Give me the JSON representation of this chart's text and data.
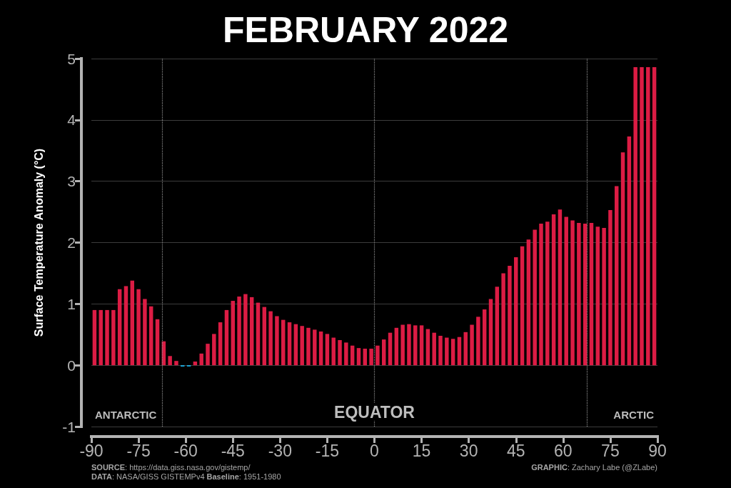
{
  "chart_data": {
    "type": "bar",
    "title": "FEBRUARY 2022",
    "ylabel": "Surface Temperature Anomaly (°C)",
    "x": [
      -89,
      -87,
      -85,
      -83,
      -81,
      -79,
      -77,
      -75,
      -73,
      -71,
      -69,
      -67,
      -65,
      -63,
      -61,
      -59,
      -57,
      -55,
      -53,
      -51,
      -49,
      -47,
      -45,
      -43,
      -41,
      -39,
      -37,
      -35,
      -33,
      -31,
      -29,
      -27,
      -25,
      -23,
      -21,
      -19,
      -17,
      -15,
      -13,
      -11,
      -9,
      -7,
      -5,
      -3,
      -1,
      1,
      3,
      5,
      7,
      9,
      11,
      13,
      15,
      17,
      19,
      21,
      23,
      25,
      27,
      29,
      31,
      33,
      35,
      37,
      39,
      41,
      43,
      45,
      47,
      49,
      51,
      53,
      55,
      57,
      59,
      61,
      63,
      65,
      67,
      69,
      71,
      73,
      75,
      77,
      79,
      81,
      83,
      85,
      87,
      89
    ],
    "values": [
      0.9,
      0.9,
      0.9,
      0.9,
      1.24,
      1.29,
      1.38,
      1.24,
      1.08,
      0.96,
      0.75,
      0.39,
      0.15,
      0.07,
      -0.02,
      -0.02,
      0.06,
      0.19,
      0.35,
      0.51,
      0.7,
      0.9,
      1.05,
      1.12,
      1.16,
      1.11,
      1.02,
      0.95,
      0.88,
      0.8,
      0.74,
      0.7,
      0.67,
      0.64,
      0.61,
      0.58,
      0.55,
      0.51,
      0.45,
      0.41,
      0.37,
      0.32,
      0.28,
      0.27,
      0.27,
      0.32,
      0.42,
      0.53,
      0.61,
      0.66,
      0.67,
      0.65,
      0.65,
      0.59,
      0.53,
      0.48,
      0.45,
      0.43,
      0.46,
      0.54,
      0.66,
      0.79,
      0.91,
      1.08,
      1.28,
      1.5,
      1.62,
      1.76,
      1.94,
      2.05,
      2.21,
      2.31,
      2.34,
      2.46,
      2.54,
      2.42,
      2.36,
      2.32,
      2.31,
      2.32,
      2.26,
      2.24,
      2.53,
      2.92,
      3.47,
      3.73,
      4.86,
      4.86,
      4.86,
      4.86
    ],
    "colors": [
      "#dc1c44",
      "#dc1c44",
      "#dc1c44",
      "#dc1c44",
      "#dc1c44",
      "#dc1c44",
      "#dc1c44",
      "#dc1c44",
      "#dc1c44",
      "#dc1c44",
      "#dc1c44",
      "#dc1c44",
      "#dc1c44",
      "#dc1c44",
      "#1ab4ea",
      "#1ab4ea",
      "#dc1c44",
      "#dc1c44",
      "#dc1c44",
      "#dc1c44",
      "#dc1c44",
      "#dc1c44",
      "#dc1c44",
      "#dc1c44",
      "#dc1c44",
      "#dc1c44",
      "#dc1c44",
      "#dc1c44",
      "#dc1c44",
      "#dc1c44",
      "#dc1c44",
      "#dc1c44",
      "#dc1c44",
      "#dc1c44",
      "#dc1c44",
      "#dc1c44",
      "#dc1c44",
      "#dc1c44",
      "#dc1c44",
      "#dc1c44",
      "#dc1c44",
      "#dc1c44",
      "#dc1c44",
      "#dc1c44",
      "#dc1c44",
      "#dc1c44",
      "#dc1c44",
      "#dc1c44",
      "#dc1c44",
      "#dc1c44",
      "#dc1c44",
      "#dc1c44",
      "#dc1c44",
      "#dc1c44",
      "#dc1c44",
      "#dc1c44",
      "#dc1c44",
      "#dc1c44",
      "#dc1c44",
      "#dc1c44",
      "#dc1c44",
      "#dc1c44",
      "#dc1c44",
      "#dc1c44",
      "#dc1c44",
      "#dc1c44",
      "#dc1c44",
      "#dc1c44",
      "#dc1c44",
      "#dc1c44",
      "#dc1c44",
      "#dc1c44",
      "#dc1c44",
      "#dc1c44",
      "#dc1c44",
      "#dc1c44",
      "#dc1c44",
      "#dc1c44",
      "#dc1c44",
      "#dc1c44",
      "#dc1c44",
      "#dc1c44",
      "#dc1c44",
      "#dc1c44",
      "#dc1c44",
      "#dc1c44",
      "#dc1c44",
      "#dc1c44",
      "#dc1c44",
      "#dc1c44"
    ],
    "xlim": [
      -90,
      90
    ],
    "xticks": [
      -90,
      -75,
      -60,
      -45,
      -30,
      -15,
      0,
      15,
      30,
      45,
      60,
      75,
      90
    ],
    "ylim": [
      -1,
      5
    ],
    "yticks": [
      -1,
      0,
      1,
      2,
      3,
      4,
      5
    ],
    "grid": "y",
    "ref_lines": [
      {
        "axis": "x",
        "value": -67.5,
        "label": "ANTARCTIC",
        "color": "#8c8c8c",
        "line_style": "dotted"
      },
      {
        "axis": "x",
        "value": 0,
        "label": "EQUATOR",
        "color": "#8c8c8c",
        "line_style": "dotted"
      },
      {
        "axis": "x",
        "value": 67.5,
        "label": "ARCTIC",
        "color": "#8c8c8c",
        "line_style": "dotted"
      }
    ],
    "annotations": [
      "SOURCE: https://data.giss.nasa.gov/gistemp/",
      "DATA: NASA/GISS GISTEMPv4 Baseline: 1951-1980",
      "GRAPHIC: Zachary Labe (@ZLabe)"
    ]
  }
}
